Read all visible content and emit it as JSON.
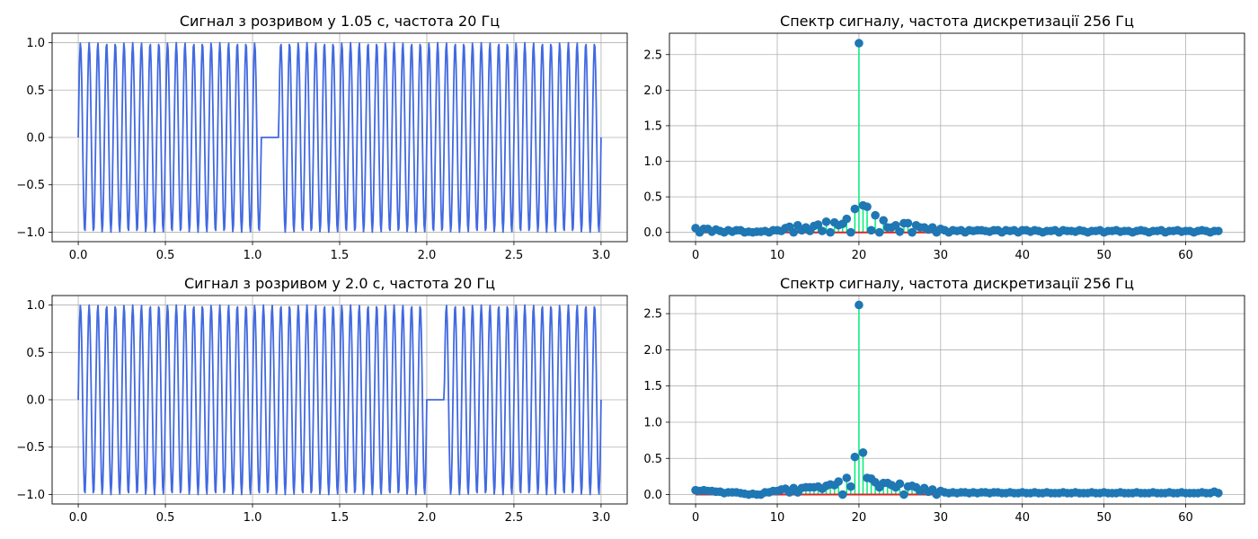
{
  "chart_data": [
    {
      "type": "line",
      "title": "Сигнал з розривом у 1.05 с, частота 20 Гц",
      "xlabel": "",
      "ylabel": "",
      "xlim": [
        -0.15,
        3.15
      ],
      "ylim": [
        -1.1,
        1.1
      ],
      "xticks": [
        0,
        0.5,
        1,
        1.5,
        2,
        2.5,
        3
      ],
      "xtick_labels": [
        "0.0",
        "0.5",
        "1.0",
        "1.5",
        "2.0",
        "2.5",
        "3.0"
      ],
      "yticks": [
        -1,
        -0.5,
        0,
        0.5,
        1
      ],
      "ytick_labels": [
        "−1.0",
        "−0.5",
        "0.0",
        "0.5",
        "1.0"
      ],
      "grid": true,
      "color": "#4169e1",
      "signal": {
        "frequency_hz": 20,
        "sample_rate_hz": 256,
        "duration_s": 3.0,
        "gap_start_s": 1.05,
        "gap_end_s": 1.15
      }
    },
    {
      "type": "stem",
      "title": "Спектр сигналу, частота дискретизації 256 Гц",
      "xlabel": "",
      "ylabel": "",
      "xlim": [
        -3.2,
        67.2
      ],
      "ylim": [
        -0.13,
        2.8
      ],
      "xticks": [
        0,
        10,
        20,
        30,
        40,
        50,
        60
      ],
      "xtick_labels": [
        "0",
        "10",
        "20",
        "30",
        "40",
        "50",
        "60"
      ],
      "yticks": [
        0,
        0.5,
        1,
        1.5,
        2,
        2.5
      ],
      "ytick_labels": [
        "0.0",
        "0.5",
        "1.0",
        "1.5",
        "2.0",
        "2.5"
      ],
      "grid": true,
      "stem_color": "#00ee76",
      "marker_color": "#1f77b4",
      "baseline_color": "#d62728",
      "x": [
        0,
        0.5,
        1,
        1.5,
        2,
        2.5,
        3,
        3.5,
        4,
        4.5,
        5,
        5.5,
        6,
        6.5,
        7,
        7.5,
        8,
        8.5,
        9,
        9.5,
        10,
        10.5,
        11,
        11.5,
        12,
        12.5,
        13,
        13.5,
        14,
        14.5,
        15,
        15.5,
        16,
        16.5,
        17,
        17.5,
        18,
        18.5,
        19,
        19.5,
        20,
        20.5,
        21,
        21.5,
        22,
        22.5,
        23,
        23.5,
        24,
        24.5,
        25,
        25.5,
        26,
        26.5,
        27,
        27.5,
        28,
        28.5,
        29,
        29.5,
        30,
        30.5,
        31,
        31.5,
        32,
        32.5,
        33,
        33.5,
        34,
        34.5,
        35,
        35.5,
        36,
        36.5,
        37,
        37.5,
        38,
        38.5,
        39,
        39.5,
        40,
        40.5,
        41,
        41.5,
        42,
        42.5,
        43,
        43.5,
        44,
        44.5,
        45,
        45.5,
        46,
        46.5,
        47,
        47.5,
        48,
        48.5,
        49,
        49.5,
        50,
        50.5,
        51,
        51.5,
        52,
        52.5,
        53,
        53.5,
        54,
        54.5,
        55,
        55.5,
        56,
        56.5,
        57,
        57.5,
        58,
        58.5,
        59,
        59.5,
        60,
        60.5,
        61,
        61.5,
        62,
        62.5,
        63,
        63.5,
        64
      ],
      "values": [
        0.06,
        0.0,
        0.05,
        0.05,
        0.01,
        0.04,
        0.02,
        0.0,
        0.03,
        0.01,
        0.03,
        0.03,
        0.0,
        0.01,
        0.0,
        0.01,
        0.01,
        0.02,
        0.0,
        0.03,
        0.03,
        0.02,
        0.06,
        0.08,
        0.0,
        0.1,
        0.03,
        0.07,
        0.02,
        0.09,
        0.11,
        0.02,
        0.15,
        0.0,
        0.14,
        0.1,
        0.12,
        0.19,
        0.0,
        0.33,
        2.66,
        0.38,
        0.36,
        0.03,
        0.24,
        0.0,
        0.17,
        0.07,
        0.07,
        0.1,
        0.01,
        0.13,
        0.13,
        0.0,
        0.1,
        0.07,
        0.07,
        0.04,
        0.07,
        0.0,
        0.05,
        0.03,
        0.0,
        0.03,
        0.02,
        0.03,
        0.0,
        0.03,
        0.02,
        0.03,
        0.03,
        0.02,
        0.01,
        0.03,
        0.03,
        0.0,
        0.03,
        0.02,
        0.03,
        0.0,
        0.03,
        0.03,
        0.01,
        0.03,
        0.02,
        0.0,
        0.02,
        0.02,
        0.03,
        0.0,
        0.03,
        0.02,
        0.02,
        0.01,
        0.03,
        0.02,
        0.0,
        0.02,
        0.02,
        0.03,
        0.0,
        0.02,
        0.02,
        0.03,
        0.01,
        0.02,
        0.02,
        0.0,
        0.02,
        0.03,
        0.02,
        0.0,
        0.02,
        0.02,
        0.03,
        0.0,
        0.02,
        0.02,
        0.03,
        0.01,
        0.02,
        0.02,
        0.0,
        0.02,
        0.03,
        0.02,
        0.0,
        0.02,
        0.02
      ]
    },
    {
      "type": "line",
      "title": "Сигнал з розривом у 2.0 с, частота 20 Гц",
      "xlabel": "",
      "ylabel": "",
      "xlim": [
        -0.15,
        3.15
      ],
      "ylim": [
        -1.1,
        1.1
      ],
      "xticks": [
        0,
        0.5,
        1,
        1.5,
        2,
        2.5,
        3
      ],
      "xtick_labels": [
        "0.0",
        "0.5",
        "1.0",
        "1.5",
        "2.0",
        "2.5",
        "3.0"
      ],
      "yticks": [
        -1,
        -0.5,
        0,
        0.5,
        1
      ],
      "ytick_labels": [
        "−1.0",
        "−0.5",
        "0.0",
        "0.5",
        "1.0"
      ],
      "grid": true,
      "color": "#4169e1",
      "signal": {
        "frequency_hz": 20,
        "sample_rate_hz": 256,
        "duration_s": 3.0,
        "gap_start_s": 2.0,
        "gap_end_s": 2.1
      }
    },
    {
      "type": "stem",
      "title": "Спектр сигналу, частота дискретизації 256 Гц",
      "xlabel": "",
      "ylabel": "",
      "xlim": [
        -3.2,
        67.2
      ],
      "ylim": [
        -0.13,
        2.75
      ],
      "xticks": [
        0,
        10,
        20,
        30,
        40,
        50,
        60
      ],
      "xtick_labels": [
        "0",
        "10",
        "20",
        "30",
        "40",
        "50",
        "60"
      ],
      "yticks": [
        0,
        0.5,
        1,
        1.5,
        2,
        2.5
      ],
      "ytick_labels": [
        "0.0",
        "0.5",
        "1.0",
        "1.5",
        "2.0",
        "2.5"
      ],
      "grid": true,
      "stem_color": "#00ee76",
      "marker_color": "#1f77b4",
      "baseline_color": "#d62728",
      "x": [
        0,
        0.5,
        1,
        1.5,
        2,
        2.5,
        3,
        3.5,
        4,
        4.5,
        5,
        5.5,
        6,
        6.5,
        7,
        7.5,
        8,
        8.5,
        9,
        9.5,
        10,
        10.5,
        11,
        11.5,
        12,
        12.5,
        13,
        13.5,
        14,
        14.5,
        15,
        15.5,
        16,
        16.5,
        17,
        17.5,
        18,
        18.5,
        19,
        19.5,
        20,
        20.5,
        21,
        21.5,
        22,
        22.5,
        23,
        23.5,
        24,
        24.5,
        25,
        25.5,
        26,
        26.5,
        27,
        27.5,
        28,
        28.5,
        29,
        29.5,
        30,
        30.5,
        31,
        31.5,
        32,
        32.5,
        33,
        33.5,
        34,
        34.5,
        35,
        35.5,
        36,
        36.5,
        37,
        37.5,
        38,
        38.5,
        39,
        39.5,
        40,
        40.5,
        41,
        41.5,
        42,
        42.5,
        43,
        43.5,
        44,
        44.5,
        45,
        45.5,
        46,
        46.5,
        47,
        47.5,
        48,
        48.5,
        49,
        49.5,
        50,
        50.5,
        51,
        51.5,
        52,
        52.5,
        53,
        53.5,
        54,
        54.5,
        55,
        55.5,
        56,
        56.5,
        57,
        57.5,
        58,
        58.5,
        59,
        59.5,
        60,
        60.5,
        61,
        61.5,
        62,
        62.5,
        63,
        63.5,
        64
      ],
      "values": [
        0.06,
        0.05,
        0.06,
        0.05,
        0.05,
        0.04,
        0.04,
        0.02,
        0.03,
        0.03,
        0.03,
        0.02,
        0.01,
        0.0,
        0.01,
        0.0,
        0.0,
        0.03,
        0.03,
        0.05,
        0.05,
        0.07,
        0.08,
        0.03,
        0.09,
        0.03,
        0.09,
        0.1,
        0.1,
        0.1,
        0.11,
        0.08,
        0.12,
        0.14,
        0.13,
        0.18,
        0.0,
        0.23,
        0.11,
        0.52,
        2.62,
        0.58,
        0.23,
        0.22,
        0.17,
        0.1,
        0.16,
        0.16,
        0.13,
        0.1,
        0.15,
        0.0,
        0.11,
        0.12,
        0.1,
        0.05,
        0.09,
        0.04,
        0.07,
        0.0,
        0.05,
        0.03,
        0.02,
        0.03,
        0.02,
        0.03,
        0.03,
        0.02,
        0.03,
        0.02,
        0.03,
        0.03,
        0.02,
        0.03,
        0.03,
        0.02,
        0.02,
        0.03,
        0.02,
        0.02,
        0.03,
        0.02,
        0.02,
        0.03,
        0.02,
        0.02,
        0.03,
        0.02,
        0.02,
        0.02,
        0.03,
        0.02,
        0.02,
        0.03,
        0.02,
        0.02,
        0.02,
        0.03,
        0.02,
        0.02,
        0.03,
        0.02,
        0.02,
        0.02,
        0.03,
        0.02,
        0.02,
        0.02,
        0.03,
        0.02,
        0.02,
        0.02,
        0.03,
        0.02,
        0.02,
        0.02,
        0.03,
        0.02,
        0.02,
        0.03,
        0.02,
        0.02,
        0.02,
        0.02,
        0.03,
        0.02,
        0.02,
        0.04,
        0.02
      ]
    }
  ]
}
